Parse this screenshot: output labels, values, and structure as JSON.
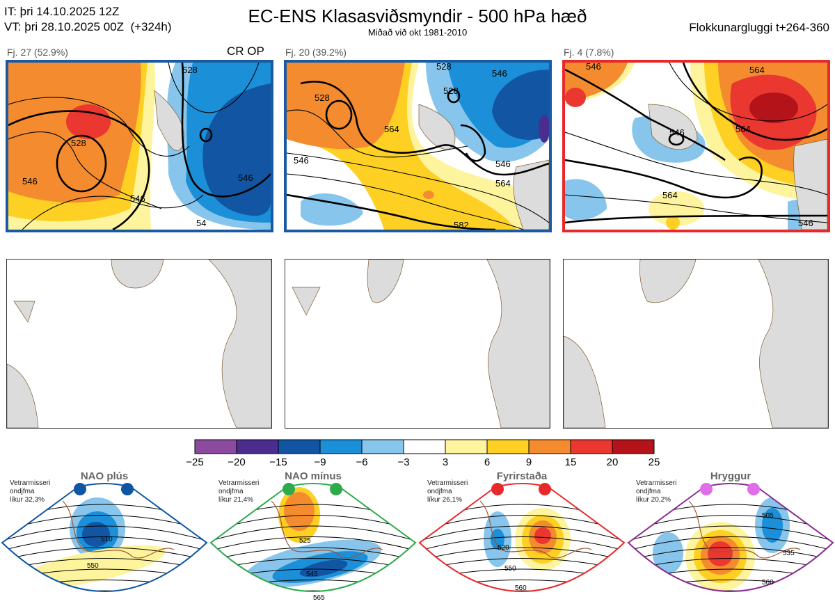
{
  "header": {
    "it_line": "IT: þri 14.10.2025 12Z",
    "vt_line": "VT: þri 28.10.2025 00Z  (+324h)",
    "title": "EC-ENS Klasasviðsmyndir - 500 hPa hæð",
    "subtitle": "Miðað við okt 1981-2010",
    "window": "Flokkunargluggi t+264-360"
  },
  "clusters": [
    {
      "label": "Fj. 27 (52.9%)",
      "tag": "CR OP",
      "contours": [
        "528",
        "546",
        "546",
        "546",
        "528",
        "54"
      ],
      "border": "#1a5aa0"
    },
    {
      "label": "Fj. 20 (39.2%)",
      "tag": "",
      "contours": [
        "528",
        "546",
        "564",
        "546",
        "528",
        "564",
        "582",
        "528",
        "546"
      ],
      "border": "#1a5aa0"
    },
    {
      "label": "Fj. 4 (7.8%)",
      "tag": "",
      "contours": [
        "546",
        "564",
        "546",
        "564",
        "564",
        "546"
      ],
      "border": "#e8292b"
    }
  ],
  "colorbar": {
    "ticks": [
      "−25",
      "−20",
      "−15",
      "−9",
      "−6",
      "−3",
      "3",
      "6",
      "9",
      "15",
      "20",
      "25"
    ],
    "colors": [
      "#8b4a9e",
      "#4b2d8f",
      "#1256a3",
      "#1b8fd8",
      "#87c5ec",
      "#ffffff",
      "#fef49e",
      "#fdd023",
      "#f48c2f",
      "#ea3730",
      "#b4131a"
    ]
  },
  "regimes": [
    {
      "name": "NAO plús",
      "info": "Vetrarmisseri\nondjfma\nlíkur 32,3%",
      "dot_color": "#0d55a5",
      "border": "#0d55a5",
      "contours": [
        "510",
        "550"
      ]
    },
    {
      "name": "NAO mínus",
      "info": "Vetrarmisseri\nondjfma\nlíkur 21,4%",
      "dot_color": "#2cab4b",
      "border": "#2cab4b",
      "contours": [
        "525",
        "545",
        "565"
      ]
    },
    {
      "name": "Fyrirstaða",
      "info": "Vetrarmisseri\nondjfma\nlíkur 26,1%",
      "dot_color": "#e8292b",
      "border": "#e8292b",
      "contours": [
        "520",
        "550",
        "560"
      ]
    },
    {
      "name": "Hryggur",
      "info": "Vetrarmisseri\nondjfma\nlíkur 20,2%",
      "dot_color": "#e06ee8",
      "border": "#8a2b91",
      "contours": [
        "505",
        "535",
        "560"
      ]
    }
  ],
  "chart_data": {
    "type": "heatmap",
    "title": "EC-ENS Klasasviðsmyndir - 500 hPa hæð",
    "variable": "500 hPa geopotential height anomaly (dam)",
    "colorbar_bins": [
      -25,
      -20,
      -15,
      -9,
      -6,
      -3,
      3,
      6,
      9,
      15,
      20,
      25
    ],
    "clusters": [
      {
        "name": "Fj. 27",
        "probability_pct": 52.9,
        "contains": [
          "control",
          "operational"
        ]
      },
      {
        "name": "Fj. 20",
        "probability_pct": 39.2
      },
      {
        "name": "Fj. 4",
        "probability_pct": 7.8
      }
    ],
    "regimes": [
      {
        "name": "NAO plús",
        "likelihood_pct": 32.3
      },
      {
        "name": "NAO mínus",
        "likelihood_pct": 21.4
      },
      {
        "name": "Fyrirstaða",
        "likelihood_pct": 26.1
      },
      {
        "name": "Hryggur",
        "likelihood_pct": 20.2
      }
    ]
  }
}
